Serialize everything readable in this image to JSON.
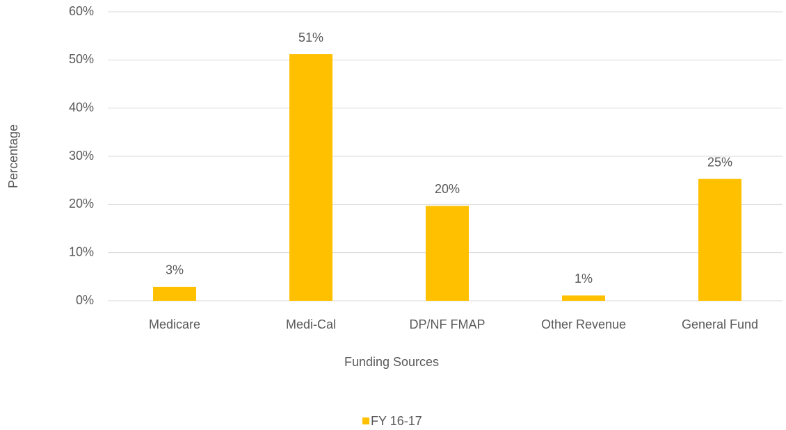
{
  "chart_data": {
    "type": "bar",
    "categories": [
      "Medicare",
      "Medi-Cal",
      "DP/NF FMAP",
      "Other Revenue",
      "General Fund"
    ],
    "series": [
      {
        "name": "FY 16-17",
        "color": "#ffc000",
        "values": [
          2.9,
          51.2,
          19.7,
          1.1,
          25.3
        ],
        "value_labels": [
          "3%",
          "51%",
          "20%",
          "1%",
          "25%"
        ]
      }
    ],
    "xlabel": "Funding Sources",
    "ylabel": "Percentage",
    "ylim": [
      0,
      60
    ],
    "yticks": [
      {
        "value": 0,
        "label": "0%"
      },
      {
        "value": 10,
        "label": "10%"
      },
      {
        "value": 20,
        "label": "20%"
      },
      {
        "value": 30,
        "label": "30%"
      },
      {
        "value": 40,
        "label": "40%"
      },
      {
        "value": 50,
        "label": "50%"
      },
      {
        "value": 60,
        "label": "60%"
      }
    ],
    "grid": true,
    "legend": "bottom"
  }
}
